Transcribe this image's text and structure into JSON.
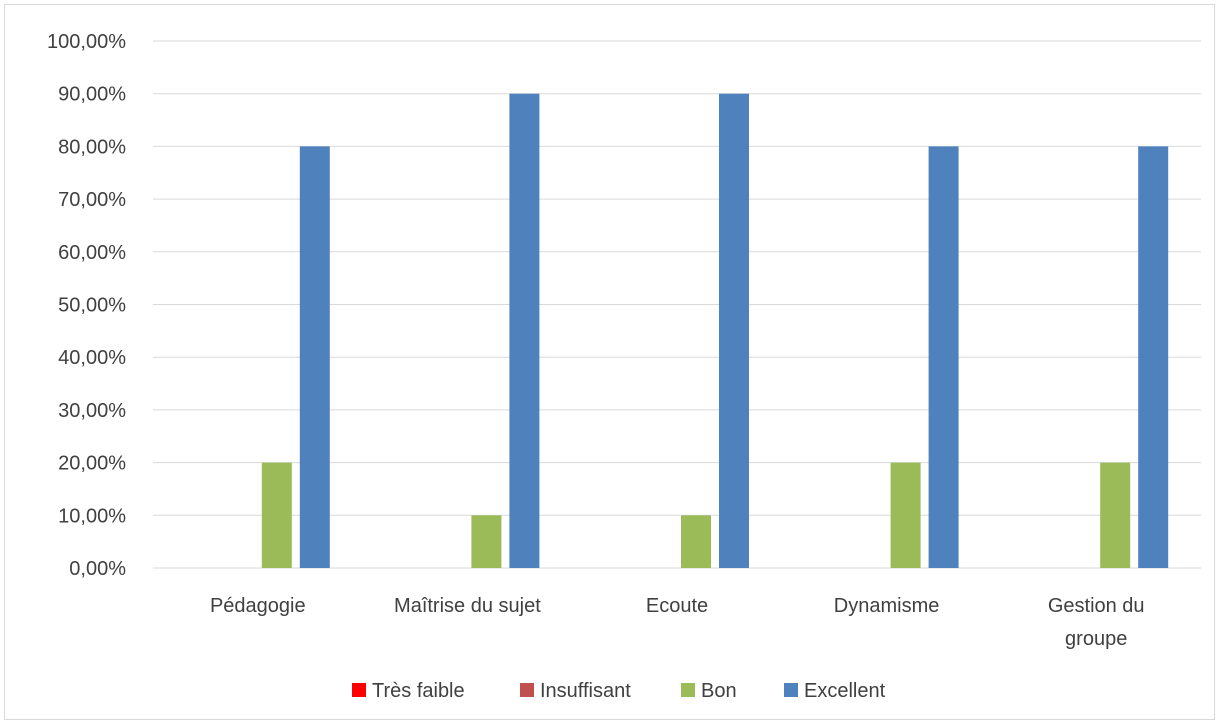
{
  "chart_data": {
    "type": "bar",
    "title": "",
    "xlabel": "",
    "ylabel": "",
    "categories": [
      "Pédagogie",
      "Maîtrise du sujet",
      "Ecoute",
      "Dynamisme",
      "Gestion du groupe"
    ],
    "category_lines": [
      [
        "Pédagogie"
      ],
      [
        "Maîtrise du sujet"
      ],
      [
        "Ecoute"
      ],
      [
        "Dynamisme"
      ],
      [
        "Gestion du",
        "groupe"
      ]
    ],
    "series": [
      {
        "name": "Très faible",
        "color": "#ff0000",
        "values": [
          0,
          0,
          0,
          0,
          0
        ]
      },
      {
        "name": "Insuffisant",
        "color": "#c0504d",
        "values": [
          0,
          0,
          0,
          0,
          0
        ]
      },
      {
        "name": "Bon",
        "color": "#9bbb59",
        "values": [
          20,
          10,
          10,
          20,
          20
        ]
      },
      {
        "name": "Excellent",
        "color": "#4f81bd",
        "values": [
          80,
          90,
          90,
          80,
          80
        ]
      }
    ],
    "ylim": [
      0,
      100
    ],
    "yticks": [
      0,
      10,
      20,
      30,
      40,
      50,
      60,
      70,
      80,
      90,
      100
    ],
    "ytick_labels": [
      "0,00%",
      "10,00%",
      "20,00%",
      "30,00%",
      "40,00%",
      "50,00%",
      "60,00%",
      "70,00%",
      "80,00%",
      "90,00%",
      "100,00%"
    ],
    "grid": true,
    "gridline_color": "#d9d9d9",
    "legend_position": "bottom"
  }
}
